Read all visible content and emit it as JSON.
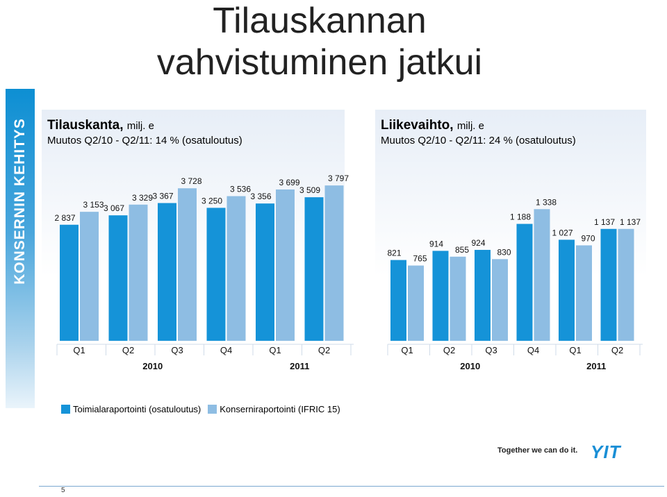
{
  "sidebar": {
    "label": "KONSERNIN KEHITYS"
  },
  "title": "Tilauskannan vahvistuminen jatkui",
  "colors": {
    "dark": "#1593d8",
    "light": "#8ebde3"
  },
  "legend": [
    {
      "label": "Toimialaraportointi (osatuloutus)",
      "color": "#1593d8"
    },
    {
      "label": "Konserniraportointi (IFRIC 15)",
      "color": "#8ebde3"
    }
  ],
  "slogan": "Together we can do it.",
  "logo": "YIT",
  "page_number": "5",
  "chart_data": [
    {
      "type": "bar",
      "title": "Tilauskanta,",
      "title_unit": "milj. e",
      "subtitle": "Muutos Q2/10 - Q2/11: 14 % (osatuloutus)",
      "categories": [
        "Q1",
        "Q2",
        "Q3",
        "Q4",
        "Q1",
        "Q2"
      ],
      "years": [
        {
          "label": "2010",
          "span": [
            0,
            3
          ]
        },
        {
          "label": "2011",
          "span": [
            4,
            5
          ]
        }
      ],
      "series": [
        {
          "name": "Toimialaraportointi (osatuloutus)",
          "values": [
            2837,
            3067,
            3367,
            3250,
            3356,
            3509
          ],
          "labels": [
            "2 837",
            "3 067",
            "3 367",
            "3 250",
            "3 356",
            "3 509"
          ]
        },
        {
          "name": "Konserniraportointi (IFRIC 15)",
          "values": [
            3153,
            3329,
            3728,
            3536,
            3699,
            3797
          ],
          "labels": [
            "3 153",
            "3 329",
            "3 728",
            "3 536",
            "3 699",
            "3 797"
          ]
        }
      ]
    },
    {
      "type": "bar",
      "title": "Liikevaihto,",
      "title_unit": "milj. e",
      "subtitle": "Muutos Q2/10 - Q2/11: 24 % (osatuloutus)",
      "categories": [
        "Q1",
        "Q2",
        "Q3",
        "Q4",
        "Q1",
        "Q2"
      ],
      "years": [
        {
          "label": "2010",
          "span": [
            0,
            3
          ]
        },
        {
          "label": "2011",
          "span": [
            4,
            5
          ]
        }
      ],
      "series": [
        {
          "name": "Toimialaraportointi (osatuloutus)",
          "values": [
            821,
            914,
            924,
            1188,
            1027,
            1137
          ],
          "labels": [
            "821",
            "914",
            "924",
            "1 188",
            "1 027",
            "1 137"
          ]
        },
        {
          "name": "Konserniraportointi (IFRIC 15)",
          "values": [
            765,
            855,
            830,
            1338,
            970,
            1137
          ],
          "labels": [
            "765",
            "855",
            "830",
            "1 338",
            "970",
            "1 137"
          ]
        }
      ]
    }
  ]
}
